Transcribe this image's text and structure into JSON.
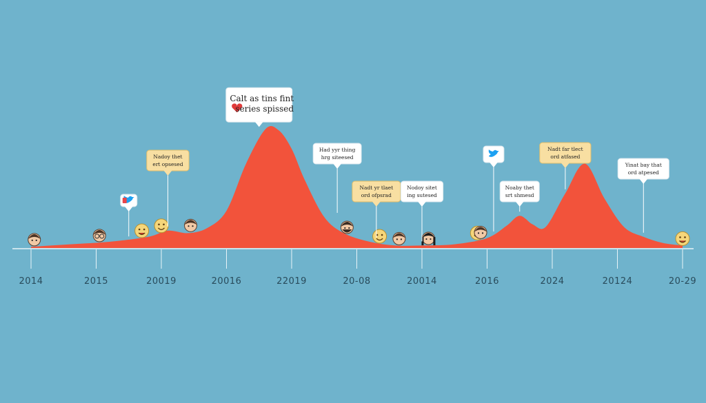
{
  "colors": {
    "background": "#6fb3cc",
    "area": "#f2533b",
    "axis": "#e9f4f8",
    "tick_label": "#294b5b",
    "callout_white": "#ffffff",
    "callout_yellow": "#f8dfa2",
    "twitter": "#1da1f2",
    "heart": "#e03a3a",
    "emoji_face": "#f5d67a"
  },
  "chart_data": {
    "type": "area",
    "title": "",
    "xlabel": "",
    "ylabel": "",
    "grid": false,
    "legend": "none",
    "tick_labels": [
      "2014",
      "2015",
      "20019",
      "20016",
      "22019",
      "20-08",
      "20014",
      "2016",
      "2024",
      "20124",
      "20-29"
    ],
    "ylim": [
      0,
      100
    ],
    "series": [
      {
        "x": [
          0,
          0.6,
          1.2,
          1.8,
          2.1,
          2.4,
          2.7,
          3.0,
          3.3,
          3.6,
          3.8,
          4.0,
          4.2,
          4.5,
          4.8,
          5.2,
          5.6,
          6.0,
          6.5,
          7.0,
          7.3,
          7.5,
          7.7,
          7.9,
          8.2,
          8.5,
          8.8,
          9.1,
          9.4,
          9.7,
          10.0
        ],
        "values": [
          1,
          3,
          5,
          9,
          14,
          12,
          16,
          30,
          68,
          96,
          95,
          80,
          55,
          25,
          12,
          5,
          2,
          2,
          3,
          8,
          18,
          26,
          19,
          17,
          44,
          68,
          40,
          17,
          9,
          4,
          2
        ]
      }
    ],
    "callouts": [
      {
        "text": "Calt as tins fint",
        "text2": "series spissed",
        "style": "white",
        "icon": "heart-icon",
        "x": 3.5,
        "y": 96
      },
      {
        "text": "Nadoy thet",
        "text2": "ert opsesed",
        "style": "yellow",
        "icon": "",
        "x": 2.1,
        "y": 14
      },
      {
        "text": "Had yyr thing",
        "text2": "hrg siteesed",
        "style": "white",
        "icon": "",
        "x": 4.7,
        "y": 25
      },
      {
        "text": "Nadt yr tlaet",
        "text2": "ord ofpsrad",
        "style": "yellow",
        "icon": "",
        "x": 5.3,
        "y": 5
      },
      {
        "text": "Nodoy sitet",
        "text2": "ing sutesed",
        "style": "white",
        "icon": "",
        "x": 6.0,
        "y": 2
      },
      {
        "text": "Noaby thet",
        "text2": "srt shmesd",
        "style": "white",
        "icon": "",
        "x": 7.5,
        "y": 26
      },
      {
        "text": "Nadt far tlect",
        "text2": "ord atfased",
        "style": "yellow",
        "icon": "",
        "x": 8.2,
        "y": 44
      },
      {
        "text": "Yinat bay that",
        "text2": "ord atpesed",
        "style": "white",
        "icon": "",
        "x": 9.4,
        "y": 9
      },
      {
        "text": "",
        "text2": "",
        "style": "white",
        "icon": "twitter-icon",
        "x": 7.1,
        "y": 10
      },
      {
        "text": "",
        "text2": "",
        "style": "white",
        "icon": "twitter-icon",
        "x": 1.5,
        "y": 6
      }
    ],
    "markers": [
      {
        "x": 0.05,
        "kind": "face"
      },
      {
        "x": 1.05,
        "kind": "glasses"
      },
      {
        "x": 1.7,
        "kind": "emoji-laugh"
      },
      {
        "x": 2.0,
        "kind": "emoji-smile"
      },
      {
        "x": 2.45,
        "kind": "face"
      },
      {
        "x": 4.85,
        "kind": "bearded"
      },
      {
        "x": 5.35,
        "kind": "emoji-smile"
      },
      {
        "x": 5.65,
        "kind": "face"
      },
      {
        "x": 6.1,
        "kind": "dark-hair"
      },
      {
        "x": 6.85,
        "kind": "emoji-smile"
      },
      {
        "x": 6.9,
        "kind": "face"
      },
      {
        "x": 10.0,
        "kind": "emoji-laugh"
      }
    ]
  }
}
